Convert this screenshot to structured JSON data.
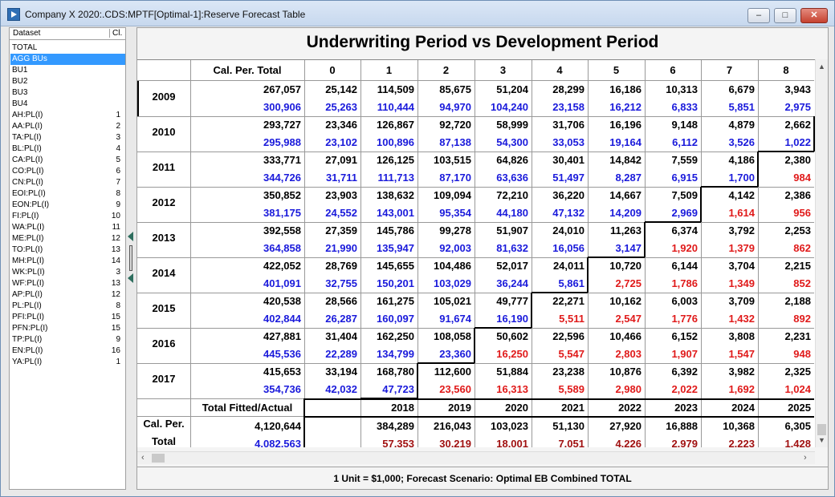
{
  "window": {
    "title": "Company X 2020:.CDS:MPTF[Optimal-1]:Reserve Forecast Table",
    "minimize_glyph": "–",
    "maximize_glyph": "□",
    "close_glyph": "✕"
  },
  "dataset_panel": {
    "col_dataset": "Dataset",
    "col_cl": "Cl.",
    "items": [
      {
        "label": "TOTAL",
        "cl": ""
      },
      {
        "label": "AGG BUs",
        "cl": "",
        "selected": true
      },
      {
        "label": "BU1",
        "cl": ""
      },
      {
        "label": "BU2",
        "cl": ""
      },
      {
        "label": "BU3",
        "cl": ""
      },
      {
        "label": "BU4",
        "cl": ""
      },
      {
        "label": "AH:PL(I)",
        "cl": "1"
      },
      {
        "label": "AA:PL(I)",
        "cl": "2"
      },
      {
        "label": "TA:PL(I)",
        "cl": "3"
      },
      {
        "label": "BL:PL(I)",
        "cl": "4"
      },
      {
        "label": "CA:PL(I)",
        "cl": "5"
      },
      {
        "label": "CO:PL(I)",
        "cl": "6"
      },
      {
        "label": "CN:PL(I)",
        "cl": "7"
      },
      {
        "label": "EOI:PL(I)",
        "cl": "8"
      },
      {
        "label": "EON:PL(I)",
        "cl": "9"
      },
      {
        "label": "FI:PL(I)",
        "cl": "10"
      },
      {
        "label": "WA:PL(I)",
        "cl": "11"
      },
      {
        "label": "ME:PL(I)",
        "cl": "12"
      },
      {
        "label": "TO:PL(I)",
        "cl": "13"
      },
      {
        "label": "MH:PL(I)",
        "cl": "14"
      },
      {
        "label": "WK:PL(I)",
        "cl": "3"
      },
      {
        "label": "WF:PL(I)",
        "cl": "13"
      },
      {
        "label": "AP:PL(I)",
        "cl": "12"
      },
      {
        "label": "PL:PL(I)",
        "cl": "8"
      },
      {
        "label": "PFI:PL(I)",
        "cl": "15"
      },
      {
        "label": "PFN:PL(I)",
        "cl": "15"
      },
      {
        "label": "TP:PL(I)",
        "cl": "9"
      },
      {
        "label": "EN:PL(I)",
        "cl": "16"
      },
      {
        "label": "YA:PL(I)",
        "cl": "1"
      }
    ]
  },
  "table": {
    "title": "Underwriting Period vs Development Period",
    "calper_header": "Cal. Per. Total",
    "dev_headers": [
      "0",
      "1",
      "2",
      "3",
      "4",
      "5",
      "6",
      "7",
      "8"
    ],
    "colors": {
      "actual": "#000000",
      "fitted": "#1a1adb",
      "forecast": "#e01a1a",
      "total_forecast": "#a01010"
    },
    "rows": [
      {
        "year": "2009",
        "diag": 9,
        "actual": [
          "267,057",
          "25,142",
          "114,509",
          "85,675",
          "51,204",
          "28,299",
          "16,186",
          "10,313",
          "6,679",
          "3,943"
        ],
        "fitted": [
          "300,906",
          "25,263",
          "110,444",
          "94,970",
          "104,240",
          "23,158",
          "16,212",
          "6,833",
          "5,851",
          "2,975"
        ]
      },
      {
        "year": "2010",
        "diag": 8,
        "actual": [
          "293,727",
          "23,346",
          "126,867",
          "92,720",
          "58,999",
          "31,706",
          "16,196",
          "9,148",
          "4,879",
          "2,662"
        ],
        "fitted": [
          "295,988",
          "23,102",
          "100,896",
          "87,138",
          "54,300",
          "33,053",
          "19,164",
          "6,112",
          "3,526",
          "1,022"
        ]
      },
      {
        "year": "2011",
        "diag": 7,
        "actual": [
          "333,771",
          "27,091",
          "126,125",
          "103,515",
          "64,826",
          "30,401",
          "14,842",
          "7,559",
          "4,186",
          "2,380"
        ],
        "fitted": [
          "344,726",
          "31,711",
          "111,713",
          "87,170",
          "63,636",
          "51,497",
          "8,287",
          "6,915",
          "1,700",
          "984"
        ]
      },
      {
        "year": "2012",
        "diag": 6,
        "actual": [
          "350,852",
          "23,903",
          "138,632",
          "109,094",
          "72,210",
          "36,220",
          "14,667",
          "7,509",
          "4,142",
          "2,386"
        ],
        "fitted": [
          "381,175",
          "24,552",
          "143,001",
          "95,354",
          "44,180",
          "47,132",
          "14,209",
          "2,969",
          "1,614",
          "956"
        ]
      },
      {
        "year": "2013",
        "diag": 5,
        "actual": [
          "392,558",
          "27,359",
          "145,786",
          "99,278",
          "51,907",
          "24,010",
          "11,263",
          "6,374",
          "3,792",
          "2,253"
        ],
        "fitted": [
          "364,858",
          "21,990",
          "135,947",
          "92,003",
          "81,632",
          "16,056",
          "3,147",
          "1,920",
          "1,379",
          "862"
        ]
      },
      {
        "year": "2014",
        "diag": 4,
        "actual": [
          "422,052",
          "28,769",
          "145,655",
          "104,486",
          "52,017",
          "24,011",
          "10,720",
          "6,144",
          "3,704",
          "2,215"
        ],
        "fitted": [
          "401,091",
          "32,755",
          "150,201",
          "103,029",
          "36,244",
          "5,861",
          "2,725",
          "1,786",
          "1,349",
          "852"
        ]
      },
      {
        "year": "2015",
        "diag": 3,
        "actual": [
          "420,538",
          "28,566",
          "161,275",
          "105,021",
          "49,777",
          "22,271",
          "10,162",
          "6,003",
          "3,709",
          "2,188"
        ],
        "fitted": [
          "402,844",
          "26,287",
          "160,097",
          "91,674",
          "16,190",
          "5,511",
          "2,547",
          "1,776",
          "1,432",
          "892"
        ]
      },
      {
        "year": "2016",
        "diag": 2,
        "actual": [
          "427,881",
          "31,404",
          "162,250",
          "108,058",
          "50,602",
          "22,596",
          "10,466",
          "6,152",
          "3,808",
          "2,231"
        ],
        "fitted": [
          "445,536",
          "22,289",
          "134,799",
          "23,360",
          "16,250",
          "5,547",
          "2,803",
          "1,907",
          "1,547",
          "948"
        ]
      },
      {
        "year": "2017",
        "diag": 1,
        "actual": [
          "415,653",
          "33,194",
          "168,780",
          "112,600",
          "51,884",
          "23,238",
          "10,876",
          "6,392",
          "3,982",
          "2,325"
        ],
        "fitted": [
          "354,736",
          "42,032",
          "47,723",
          "23,560",
          "16,313",
          "5,589",
          "2,980",
          "2,022",
          "1,692",
          "1,024"
        ]
      }
    ],
    "totals_label": "Total Fitted/Actual",
    "cal_years": [
      "2018",
      "2019",
      "2020",
      "2021",
      "2022",
      "2023",
      "2024",
      "2025"
    ],
    "calper_label_1": "Cal. Per.",
    "calper_label_2": "Total",
    "totals_actual": [
      "4,120,644",
      "",
      "384,289",
      "216,043",
      "103,023",
      "51,130",
      "27,920",
      "16,888",
      "10,368",
      "6,305"
    ],
    "totals_fitted": [
      "4,082,563",
      "",
      "57,353",
      "30,219",
      "18,001",
      "7,051",
      "4,226",
      "2,979",
      "2,223",
      "1,428"
    ]
  },
  "footer": "1 Unit = $1,000; Forecast Scenario: Optimal EB Combined TOTAL",
  "scroll_glyphs": {
    "up": "▲",
    "down": "▼",
    "left": "‹",
    "right": "›"
  }
}
